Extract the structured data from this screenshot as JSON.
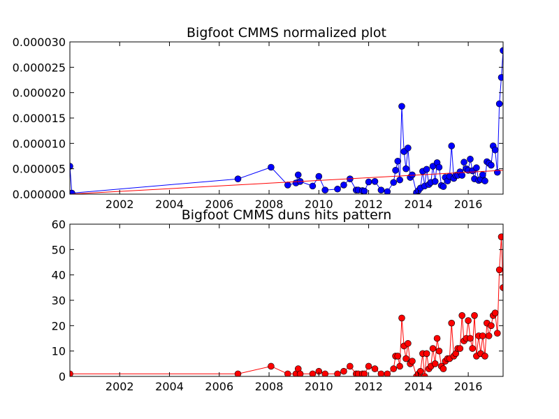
{
  "chart_data": [
    {
      "type": "line",
      "title": "Bigfoot CMMS normalized plot",
      "xlabel": "",
      "ylabel": "",
      "x_unit": "year",
      "xlim": [
        2000.0,
        2017.4
      ],
      "ylim": [
        0,
        3e-05
      ],
      "x_ticks": [
        2002,
        2004,
        2006,
        2008,
        2010,
        2012,
        2014,
        2016
      ],
      "x_tick_labels": [
        "2002",
        "2004",
        "2006",
        "2008",
        "2010",
        "2012",
        "2014",
        "2016"
      ],
      "y_ticks": [
        0,
        5e-06,
        1e-05,
        1.5e-05,
        2e-05,
        2.5e-05,
        3e-05
      ],
      "y_tick_labels": [
        "0.000000",
        "0.000005",
        "0.000010",
        "0.000015",
        "0.000020",
        "0.000025",
        "0.000030"
      ],
      "grid": false,
      "legend": "none",
      "series": [
        {
          "style": "line-with-markers",
          "color": "#0000ff",
          "marker": "circle",
          "x": [
            2000.0,
            2000.08,
            2006.75,
            2008.08,
            2008.75,
            2009.08,
            2009.17,
            2009.25,
            2009.75,
            2010.0,
            2010.25,
            2010.75,
            2011.0,
            2011.25,
            2011.5,
            2011.58,
            2011.75,
            2011.83,
            2012.0,
            2012.25,
            2012.5,
            2012.75,
            2013.0,
            2013.08,
            2013.17,
            2013.25,
            2013.33,
            2013.42,
            2013.5,
            2013.58,
            2013.67,
            2013.75,
            2013.92,
            2014.0,
            2014.08,
            2014.17,
            2014.25,
            2014.33,
            2014.42,
            2014.5,
            2014.58,
            2014.67,
            2014.75,
            2014.83,
            2014.92,
            2015.0,
            2015.08,
            2015.17,
            2015.25,
            2015.33,
            2015.42,
            2015.5,
            2015.58,
            2015.67,
            2015.75,
            2015.83,
            2015.92,
            2016.0,
            2016.08,
            2016.17,
            2016.25,
            2016.33,
            2016.42,
            2016.5,
            2016.58,
            2016.67,
            2016.75,
            2016.83,
            2016.92,
            2017.0,
            2017.08,
            2017.17,
            2017.25,
            2017.33,
            2017.4
          ],
          "y": [
            5.5e-06,
            2e-07,
            3e-06,
            5.3e-06,
            1.8e-06,
            2.2e-06,
            3.8e-06,
            2.5e-06,
            1.6e-06,
            3.5e-06,
            8e-07,
            1e-06,
            1.8e-06,
            3e-06,
            8e-07,
            8e-07,
            7e-07,
            6e-07,
            2.4e-06,
            2.5e-06,
            8e-07,
            5e-07,
            2.3e-06,
            4.7e-06,
            6.5e-06,
            2.8e-06,
            1.73e-05,
            8.4e-06,
            5e-06,
            9.1e-06,
            3.3e-06,
            3.8e-06,
            3e-07,
            7e-07,
            1.2e-06,
            4.5e-06,
            1.6e-06,
            4.9e-06,
            1.9e-06,
            2.3e-06,
            5.5e-06,
            2.5e-06,
            6.2e-06,
            5.3e-06,
            1.7e-06,
            1.5e-06,
            3.3e-06,
            2.6e-06,
            3.5e-06,
            9.5e-06,
            3.1e-06,
            3.7e-06,
            3.7e-06,
            4.4e-06,
            3.7e-06,
            6.3e-06,
            5e-06,
            4.7e-06,
            6.9e-06,
            4.6e-06,
            3e-06,
            5.2e-06,
            2.7e-06,
            2.9e-06,
            3.8e-06,
            2.6e-06,
            6.4e-06,
            6.1e-06,
            5.7e-06,
            9.5e-06,
            8.7e-06,
            4.3e-06,
            1.78e-05,
            2.3e-05,
            2.83e-05
          ]
        },
        {
          "style": "trend-line",
          "color": "#ff0000",
          "x": [
            2000.0,
            2017.4
          ],
          "y": [
            0.0,
            4.7e-06
          ]
        }
      ]
    },
    {
      "type": "line",
      "title": "Bigfoot CMMS duns hits pattern",
      "xlabel": "",
      "ylabel": "",
      "x_unit": "year",
      "xlim": [
        2000.0,
        2017.4
      ],
      "ylim": [
        0,
        60
      ],
      "x_ticks": [
        2002,
        2004,
        2006,
        2008,
        2010,
        2012,
        2014,
        2016
      ],
      "x_tick_labels": [
        "2002",
        "2004",
        "2006",
        "2008",
        "2010",
        "2012",
        "2014",
        "2016"
      ],
      "y_ticks": [
        0,
        10,
        20,
        30,
        40,
        50,
        60
      ],
      "y_tick_labels": [
        "0",
        "10",
        "20",
        "30",
        "40",
        "50",
        "60"
      ],
      "grid": false,
      "legend": "none",
      "series": [
        {
          "style": "line-with-markers",
          "color": "#ff0000",
          "marker": "circle",
          "x": [
            2000.0,
            2006.75,
            2008.08,
            2008.75,
            2009.08,
            2009.17,
            2009.25,
            2009.75,
            2010.0,
            2010.25,
            2010.75,
            2011.0,
            2011.25,
            2011.5,
            2011.58,
            2011.75,
            2011.83,
            2012.0,
            2012.25,
            2012.5,
            2012.75,
            2013.0,
            2013.08,
            2013.17,
            2013.25,
            2013.33,
            2013.42,
            2013.5,
            2013.58,
            2013.67,
            2013.75,
            2013.92,
            2014.0,
            2014.08,
            2014.17,
            2014.25,
            2014.33,
            2014.42,
            2014.5,
            2014.58,
            2014.67,
            2014.75,
            2014.83,
            2014.92,
            2015.0,
            2015.08,
            2015.17,
            2015.25,
            2015.33,
            2015.42,
            2015.5,
            2015.58,
            2015.67,
            2015.75,
            2015.83,
            2015.92,
            2016.0,
            2016.08,
            2016.17,
            2016.25,
            2016.33,
            2016.42,
            2016.5,
            2016.58,
            2016.67,
            2016.75,
            2016.83,
            2016.92,
            2017.0,
            2017.08,
            2017.17,
            2017.25,
            2017.33,
            2017.4
          ],
          "y": [
            1,
            1,
            4,
            1,
            1,
            3,
            1,
            1,
            2,
            1,
            1,
            2,
            4,
            1,
            1,
            1,
            1,
            4,
            3,
            1,
            1,
            3,
            8,
            8,
            4,
            23,
            12,
            7,
            13,
            5,
            6,
            0,
            1,
            2,
            9,
            0,
            9,
            3,
            4,
            11,
            5,
            15,
            10,
            4,
            3,
            6,
            7,
            7,
            21,
            8,
            9,
            11,
            11,
            24,
            14,
            15,
            22,
            15,
            11,
            24,
            8,
            16,
            9,
            16,
            8,
            21,
            16,
            20,
            24,
            25,
            17,
            42,
            55,
            35
          ]
        }
      ]
    }
  ]
}
